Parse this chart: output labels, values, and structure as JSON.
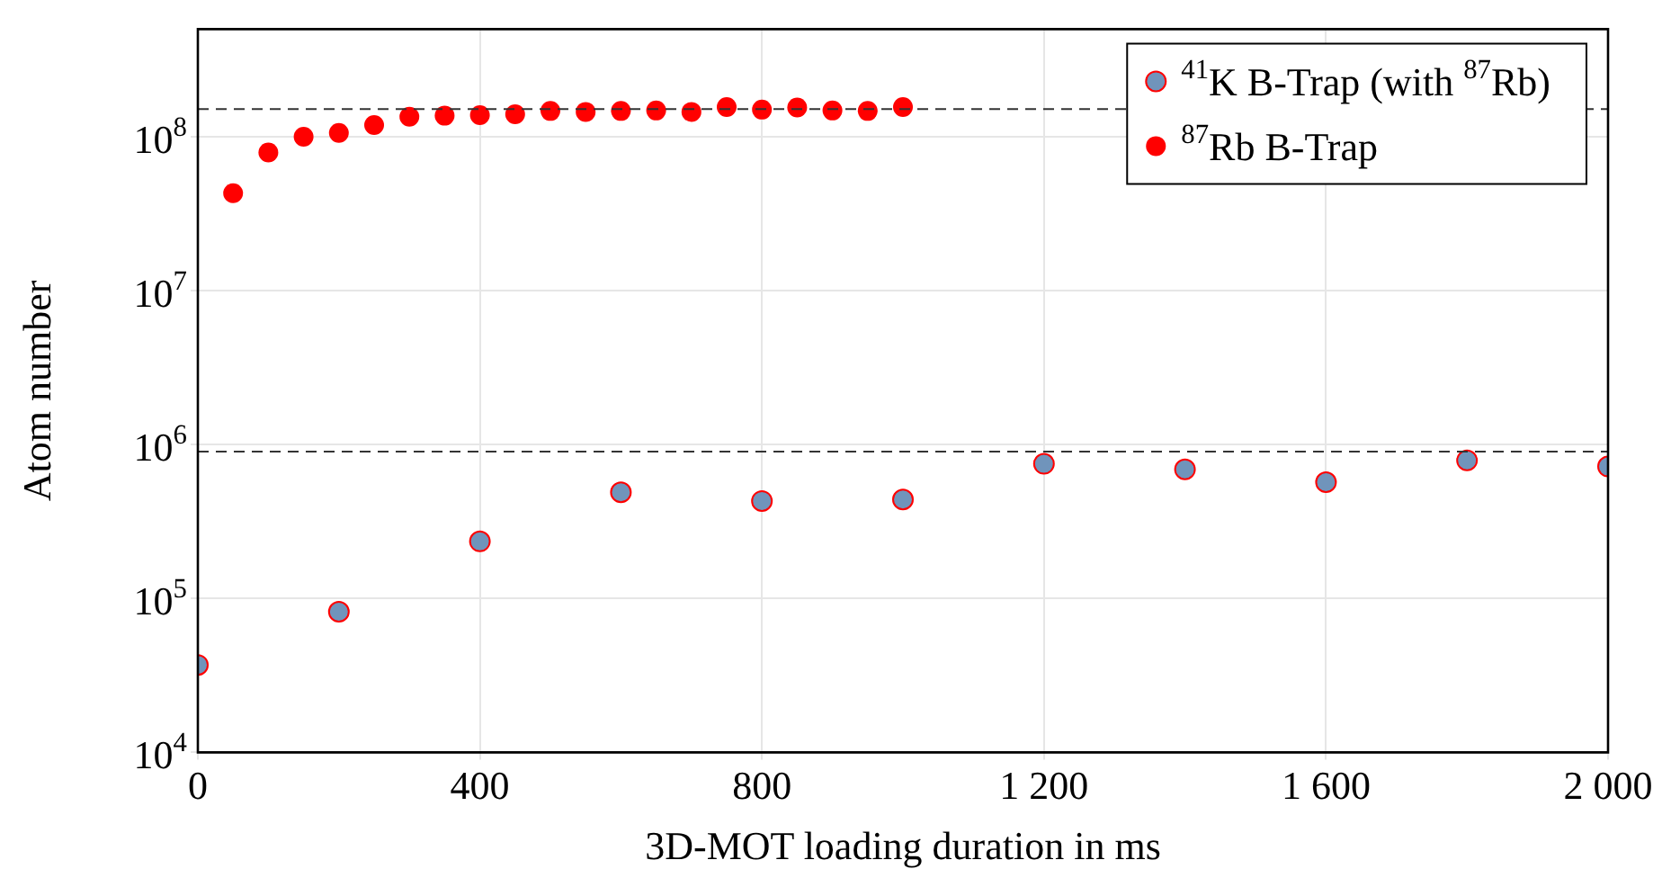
{
  "chart_data": {
    "type": "scatter",
    "xlabel": "3D-MOT loading duration in ms",
    "ylabel": "Atom number",
    "log": "y",
    "grid": true,
    "legend": "top right",
    "marker": "circle",
    "xlim": [
      0,
      2000
    ],
    "xticks": [
      0,
      400,
      800,
      {
        "value": 1200,
        "label": "1 200"
      },
      {
        "value": 1600,
        "label": "1 600"
      },
      {
        "value": 2000,
        "label": "2 000"
      }
    ],
    "ylim": [
      10000,
      500000000
    ],
    "yticks": [
      {
        "value": 10000,
        "label": "10$^{4}$"
      },
      {
        "value": 100000,
        "label": "10$^{5}$"
      },
      {
        "value": 1000000,
        "label": "10$^{6}$"
      },
      {
        "value": 10000000,
        "label": "10$^{7}$"
      },
      {
        "value": 100000000,
        "label": "10$^{8}$"
      }
    ],
    "series": [
      {
        "name": "$^{41}$K B-Trap (with $^{87}$Rb)",
        "color": "#7094bb",
        "x": [
          0,
          200,
          400,
          600,
          800,
          1000,
          1200,
          1400,
          1600,
          1800,
          2000
        ],
        "values": [
          37000,
          82000,
          235000,
          490000,
          430000,
          440000,
          750000,
          690000,
          570000,
          790000,
          720000
        ]
      },
      {
        "name": "$^{87}$Rb B-Trap",
        "color": "#ff0000",
        "x": [
          50,
          100,
          150,
          200,
          250,
          300,
          350,
          400,
          450,
          500,
          550,
          600,
          650,
          700,
          750,
          800,
          850,
          900,
          950,
          1000
        ],
        "values": [
          43000000,
          79000000,
          100000000,
          106000000,
          119000000,
          135000000,
          137000000,
          138000000,
          140000000,
          147000000,
          145000000,
          147000000,
          148000000,
          145000000,
          156000000,
          150000000,
          155000000,
          148000000,
          147000000,
          156000000
        ]
      }
    ],
    "ref_lines": [
      {
        "axis": "y",
        "value": 151000000,
        "color": "#333333",
        "line_style": "dashed"
      },
      {
        "axis": "y",
        "value": 900000,
        "color": "#333333",
        "line_style": "dashed"
      }
    ]
  }
}
